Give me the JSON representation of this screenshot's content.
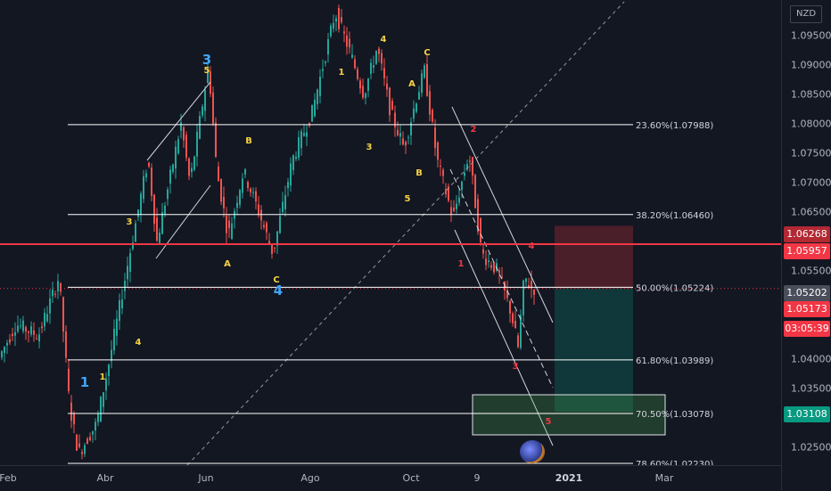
{
  "currency": "NZD",
  "colors": {
    "bg": "#131722",
    "up": "#26a69a",
    "down": "#ef5350",
    "fib": "#ffffff",
    "support_red": "#f23645",
    "stop_zone": "rgba(242,54,69,0.25)",
    "target_zone": "rgba(8,153,129,0.25)",
    "green_box": "rgba(76,175,80,0.25)",
    "wave_yellow": "#f5d142",
    "wave_blue": "#42a5f5",
    "wave_red": "#f23645"
  },
  "price_axis": {
    "ticks": [
      "1.09500",
      "1.09000",
      "1.08500",
      "1.08000",
      "1.07500",
      "1.07000",
      "1.06500",
      "1.05500",
      "1.04000",
      "1.03500",
      "1.02500"
    ],
    "badges": [
      {
        "label": "1.06268",
        "color": "#b22833"
      },
      {
        "label": "1.05957",
        "color": "#f23645"
      },
      {
        "label": "1.05202",
        "color": "#4a4e5a"
      },
      {
        "label": "1.05173",
        "color": "#f23645"
      },
      {
        "label": "03:05:39",
        "color": "#f23645"
      },
      {
        "label": "1.03108",
        "color": "#089981"
      }
    ]
  },
  "time_axis": {
    "ticks": [
      {
        "label": "Feb",
        "bold": false
      },
      {
        "label": "Abr",
        "bold": false
      },
      {
        "label": "Jun",
        "bold": false
      },
      {
        "label": "Ago",
        "bold": false
      },
      {
        "label": "Oct",
        "bold": false
      },
      {
        "label": "9",
        "bold": false
      },
      {
        "label": "2021",
        "bold": true
      },
      {
        "label": "Mar",
        "bold": false
      }
    ]
  },
  "fib_levels": [
    {
      "label": "23.60%(1.07988)",
      "price": 1.07988
    },
    {
      "label": "38.20%(1.06460)",
      "price": 1.0646
    },
    {
      "label": "50.00%(1.05224)",
      "price": 1.05224
    },
    {
      "label": "61.80%(1.03989)",
      "price": 1.03989
    },
    {
      "label": "70.50%(1.03078)",
      "price": 1.03078
    },
    {
      "label": "78.60%(1.02230)",
      "price": 1.0223
    }
  ],
  "wave_labels": [
    {
      "text": "1",
      "color": "blue"
    },
    {
      "text": "1",
      "color": "yellow"
    },
    {
      "text": "3",
      "color": "yellow"
    },
    {
      "text": "4",
      "color": "yellow"
    },
    {
      "text": "3",
      "color": "blue"
    },
    {
      "text": "5",
      "color": "yellow"
    },
    {
      "text": "B",
      "color": "yellow"
    },
    {
      "text": "A",
      "color": "yellow"
    },
    {
      "text": "C",
      "color": "yellow"
    },
    {
      "text": "4",
      "color": "blue"
    },
    {
      "text": "1",
      "color": "yellow"
    },
    {
      "text": "3",
      "color": "yellow"
    },
    {
      "text": "4",
      "color": "yellow"
    },
    {
      "text": "5",
      "color": "yellow"
    },
    {
      "text": "B",
      "color": "yellow"
    },
    {
      "text": "A",
      "color": "yellow"
    },
    {
      "text": "C",
      "color": "yellow"
    },
    {
      "text": "2",
      "color": "red"
    },
    {
      "text": "1",
      "color": "red"
    },
    {
      "text": "4",
      "color": "red"
    },
    {
      "text": "3",
      "color": "red"
    },
    {
      "text": "5",
      "color": "red"
    }
  ],
  "chart_data": {
    "type": "candlestick",
    "symbol_currency": "NZD",
    "y_range": [
      1.023,
      1.099
    ],
    "x_period": [
      "Feb",
      "Mar"
    ],
    "current_price": 1.05202,
    "resistance_line": 1.05957,
    "position": {
      "stop": 1.06268,
      "entry": 1.05202,
      "target": 1.03108
    }
  }
}
